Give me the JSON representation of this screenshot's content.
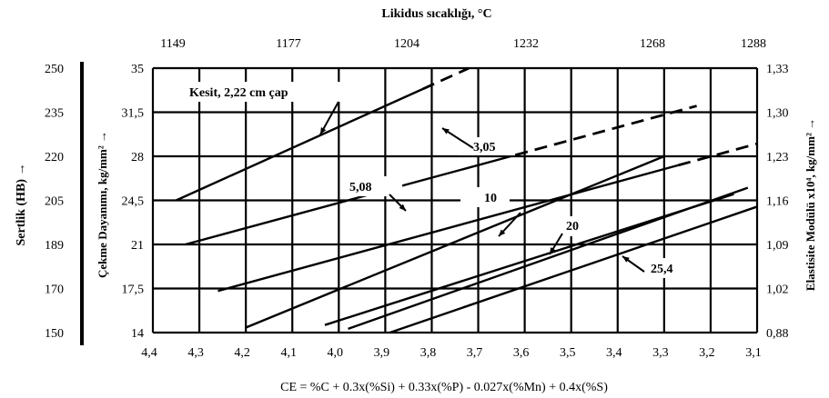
{
  "chart_data": {
    "type": "line",
    "title": "Likidus sıcaklığı, °C",
    "xlabel": "CE = %C + 0.3x(%Si) + 0.33x(%P) - 0.027x(%Mn) + 0.4x(%S)",
    "left_axis_1_label": "Sertlik (HB) →",
    "left_axis_2_label": "Çekme Dayanımı, kg/mm² →",
    "right_axis_label": "Elastisite Modülü x10⁴, kg/mm² →",
    "xlim": [
      4.4,
      3.1
    ],
    "ylim": [
      14,
      35
    ],
    "x_ticks": [
      "4,4",
      "4,3",
      "4,2",
      "4,1",
      "4,0",
      "3,9",
      "3,8",
      "3,7",
      "3,6",
      "3,5",
      "3,4",
      "3,3",
      "3,2",
      "3,1"
    ],
    "top_ticks": [
      "1149",
      "1177",
      "1204",
      "1232",
      "1268",
      "1288"
    ],
    "y_ticks_tensile": [
      "14",
      "17,5",
      "21",
      "24,5",
      "28",
      "31,5",
      "35"
    ],
    "y_ticks_hardness": [
      "150",
      "170",
      "189",
      "205",
      "220",
      "235",
      "250"
    ],
    "y_ticks_modulus": [
      "0,88",
      "1,02",
      "1,09",
      "1,16",
      "1,23",
      "1,30",
      "1,33"
    ],
    "series": [
      {
        "name": "Kesit, 2,22 cm çap",
        "x": [
          4.35,
          3.72
        ],
        "y": [
          24.5,
          35.0
        ],
        "dashed_x": [
          3.82,
          3.72
        ]
      },
      {
        "name": "3,05",
        "x": [
          4.33,
          3.23
        ],
        "y": [
          21.0,
          32.0
        ],
        "dashed_x": [
          3.62,
          3.23
        ]
      },
      {
        "name": "5,08",
        "x": [
          4.26,
          3.1
        ],
        "y": [
          17.3,
          29.0
        ],
        "dashed_x": [
          3.27,
          3.1
        ]
      },
      {
        "name": "10",
        "x": [
          4.03,
          3.15
        ],
        "y": [
          14.6,
          25.0
        ],
        "dashed_x": []
      },
      {
        "name": "20",
        "x": [
          3.98,
          3.12
        ],
        "y": [
          14.3,
          25.5
        ],
        "dashed_x": []
      },
      {
        "name": "25,4",
        "x": [
          3.89,
          3.1
        ],
        "y": [
          14.0,
          24.0
        ],
        "dashed_x": []
      },
      {
        "name": "",
        "x": [
          4.2,
          3.3
        ],
        "y": [
          14.4,
          28.0
        ],
        "dashed_x": []
      }
    ],
    "annotations": [
      "Kesit, 2,22 cm çap",
      "3,05",
      "5,08",
      "10",
      "20",
      "25,4"
    ],
    "grid": true
  }
}
